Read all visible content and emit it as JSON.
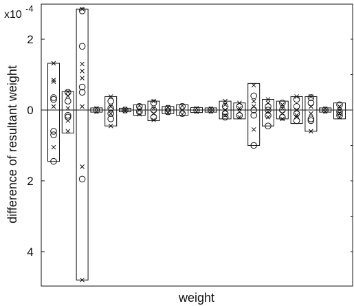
{
  "chart_data": {
    "type": "box",
    "title": "",
    "xlabel": "weight",
    "ylabel": "difference of resultant weight",
    "y_multiplier_label": "x10",
    "y_multiplier_exponent": "-4",
    "ylim": [
      -5,
      2.8
    ],
    "yticks": [
      {
        "value": 2,
        "label": "2"
      },
      {
        "value": 0,
        "label": "0"
      },
      {
        "value": -2,
        "label": "2"
      },
      {
        "value": -4,
        "label": "4"
      }
    ],
    "grid": false,
    "legend": "none",
    "colors": {
      "stroke": "#111111",
      "background": "#ffffff"
    },
    "groups": [
      {
        "index": 1,
        "box": [
          -1.45,
          1.32
        ],
        "circles": [
          0.35,
          0.3,
          -0.6,
          -0.7,
          -1.45
        ],
        "crosses": [
          1.32,
          0.85,
          0.8,
          0.1,
          -1.05
        ]
      },
      {
        "index": 2,
        "box": [
          -0.65,
          0.52
        ],
        "circles": [
          0.5,
          0.25,
          -0.15,
          -0.2
        ],
        "crosses": [
          0.52,
          0.4,
          0.05,
          -0.3,
          -0.6
        ]
      },
      {
        "index": 3,
        "box": [
          -4.8,
          2.85
        ],
        "circles": [
          2.8,
          1.8,
          0.65,
          0.5,
          -1.95
        ],
        "crosses": [
          2.85,
          1.3,
          1.1,
          0.9,
          0.1,
          -1.6,
          -4.8
        ]
      },
      {
        "index": 4,
        "box": [
          -0.06,
          0.06
        ],
        "circles": [
          0.0
        ],
        "crosses": [
          0.05,
          -0.05
        ]
      },
      {
        "index": 5,
        "box": [
          -0.45,
          0.38
        ],
        "circles": [
          0.25,
          0.05,
          -0.1,
          -0.25
        ],
        "crosses": [
          0.38,
          0.1,
          -0.1,
          -0.45
        ]
      },
      {
        "index": 6,
        "box": [
          -0.05,
          0.05
        ],
        "circles": [
          0.0
        ],
        "crosses": [
          0.03,
          -0.03
        ]
      },
      {
        "index": 7,
        "box": [
          -0.15,
          0.15
        ],
        "circles": [
          0.1,
          -0.05
        ],
        "crosses": [
          0.12,
          0.0,
          -0.12
        ]
      },
      {
        "index": 8,
        "box": [
          -0.3,
          0.25
        ],
        "circles": [
          0.2,
          0.0,
          -0.2
        ],
        "crosses": [
          0.25,
          0.05,
          -0.1,
          -0.28
        ]
      },
      {
        "index": 9,
        "box": [
          -0.1,
          0.1
        ],
        "circles": [
          0.05,
          -0.05
        ],
        "crosses": [
          0.08,
          -0.08
        ]
      },
      {
        "index": 10,
        "box": [
          -0.15,
          0.15
        ],
        "circles": [
          0.1,
          -0.1
        ],
        "crosses": [
          0.12,
          0.0,
          -0.12
        ]
      },
      {
        "index": 11,
        "box": [
          -0.07,
          0.07
        ],
        "circles": [
          0.0
        ],
        "crosses": [
          0.05,
          -0.05
        ]
      },
      {
        "index": 12,
        "box": [
          -0.06,
          0.06
        ],
        "circles": [
          0.0
        ],
        "crosses": [
          0.04,
          -0.04
        ]
      },
      {
        "index": 13,
        "box": [
          -0.25,
          0.25
        ],
        "circles": [
          0.1,
          -0.1,
          -0.2
        ],
        "crosses": [
          0.25,
          0.15,
          0.0,
          -0.15
        ]
      },
      {
        "index": 14,
        "box": [
          -0.25,
          0.2
        ],
        "circles": [
          0.1,
          -0.15
        ],
        "crosses": [
          0.2,
          0.05,
          -0.05,
          -0.2
        ]
      },
      {
        "index": 15,
        "box": [
          -1.0,
          0.75
        ],
        "circles": [
          0.4,
          0.0,
          -0.15,
          -1.0
        ],
        "crosses": [
          0.7,
          0.25,
          0.1,
          -0.55
        ]
      },
      {
        "index": 16,
        "box": [
          -0.45,
          0.3
        ],
        "circles": [
          0.1,
          0.0,
          -0.15,
          -0.45
        ],
        "crosses": [
          0.3,
          0.2,
          -0.05,
          -0.2
        ]
      },
      {
        "index": 17,
        "box": [
          -0.25,
          0.25
        ],
        "circles": [
          0.2,
          0.0,
          -0.2
        ],
        "crosses": [
          0.15,
          0.05,
          -0.1,
          -0.25
        ]
      },
      {
        "index": 18,
        "box": [
          -0.38,
          0.38
        ],
        "circles": [
          0.3,
          0.1,
          -0.1,
          -0.3
        ],
        "crosses": [
          0.38,
          0.0,
          -0.15,
          -0.2
        ]
      },
      {
        "index": 19,
        "box": [
          -0.6,
          0.38
        ],
        "circles": [
          0.35,
          0.2,
          -0.25,
          -0.3
        ],
        "crosses": [
          0.38,
          0.1,
          -0.1,
          -0.6
        ]
      },
      {
        "index": 20,
        "box": [
          -0.06,
          0.06
        ],
        "circles": [
          0.0
        ],
        "crosses": [
          0.04,
          -0.04
        ]
      },
      {
        "index": 21,
        "box": [
          -0.25,
          0.2
        ],
        "circles": [
          0.15,
          -0.05,
          -0.15
        ],
        "crosses": [
          0.1,
          0.0,
          -0.1,
          -0.2
        ]
      }
    ]
  }
}
